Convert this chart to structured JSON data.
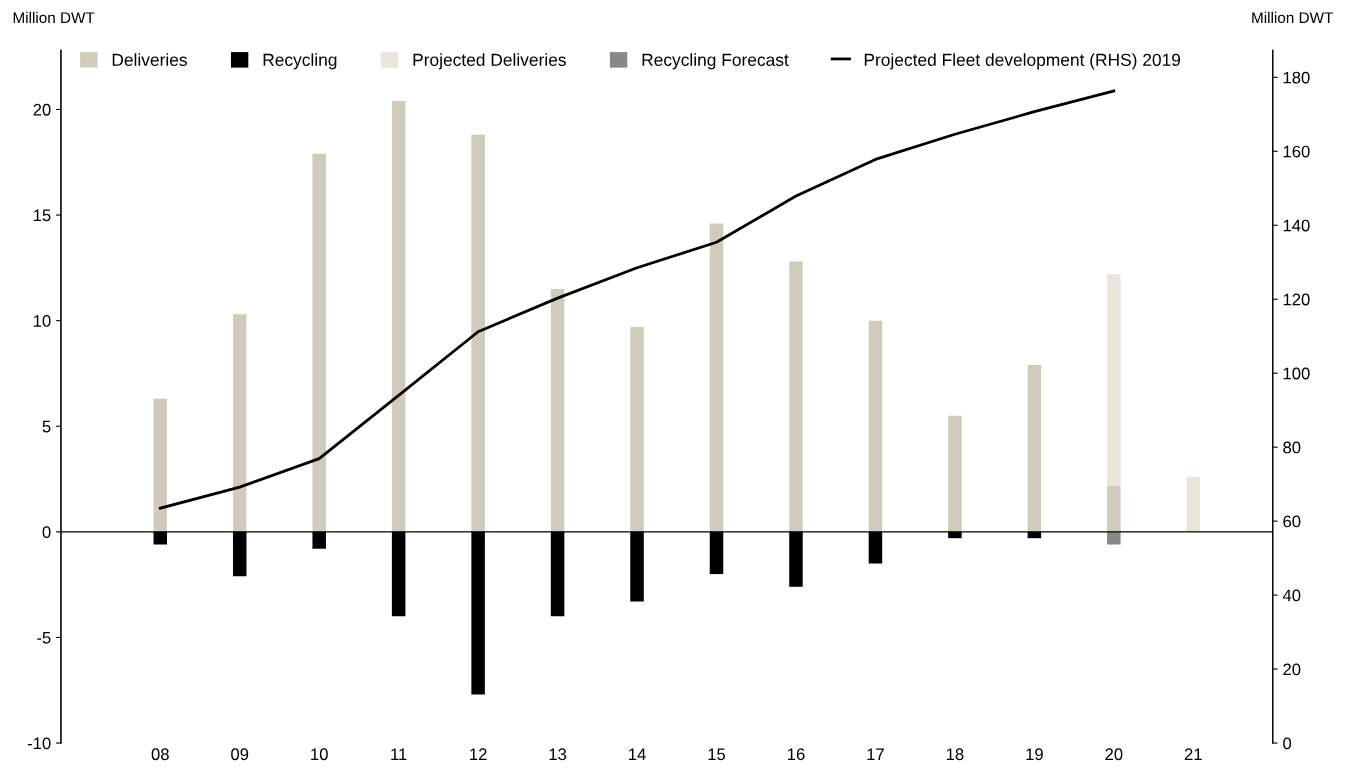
{
  "chart_data": {
    "type": "bar",
    "stacked": true,
    "ylabel": "Million DWT",
    "y2label": "Million DWT",
    "categories": [
      "08",
      "09",
      "10",
      "11",
      "12",
      "13",
      "14",
      "15",
      "16",
      "17",
      "18",
      "19",
      "20",
      "21"
    ],
    "series": [
      {
        "name": "Deliveries",
        "color": "#cfcbbd",
        "values": [
          6.3,
          10.3,
          17.9,
          20.4,
          18.8,
          11.5,
          9.7,
          14.6,
          12.8,
          10.0,
          5.5,
          7.9,
          2.2,
          null
        ]
      },
      {
        "name": "Recycling",
        "color": "#000000",
        "values": [
          -0.6,
          -2.1,
          -0.8,
          -4.0,
          -7.7,
          -4.0,
          -3.3,
          -2.0,
          -2.6,
          -1.5,
          -0.3,
          -0.3,
          null,
          null
        ]
      },
      {
        "name": "Projected Deliveries",
        "color": "#e8e5dd",
        "values": [
          null,
          null,
          null,
          null,
          null,
          null,
          null,
          null,
          null,
          null,
          null,
          null,
          10.0,
          2.6
        ]
      },
      {
        "name": "Recycling Forecast",
        "color": "#888888",
        "values": [
          null,
          null,
          null,
          null,
          null,
          null,
          null,
          null,
          null,
          null,
          null,
          null,
          -0.6,
          null
        ]
      },
      {
        "name": "Projected Fleet development (RHS) 2019",
        "type": "line",
        "axis": "y2",
        "color": "#000000",
        "values": [
          63.5,
          69.2,
          76.9,
          94.0,
          111.2,
          120.3,
          128.5,
          135.4,
          147.9,
          157.8,
          164.6,
          170.7,
          176.3,
          null
        ]
      }
    ],
    "ylim": [
      -10,
      22.8
    ],
    "yticks": [
      -10,
      -5,
      0,
      5,
      10,
      15,
      20
    ],
    "y2lim": [
      0,
      187.3
    ],
    "y2ticks": [
      0,
      20,
      40,
      60,
      80,
      100,
      120,
      140,
      160,
      180
    ],
    "ref_lines": [
      {
        "axis": "y",
        "value": 0,
        "color": "#000000"
      }
    ],
    "legend": "top",
    "grid": false,
    "marker": "none",
    "line_style": "solid"
  }
}
